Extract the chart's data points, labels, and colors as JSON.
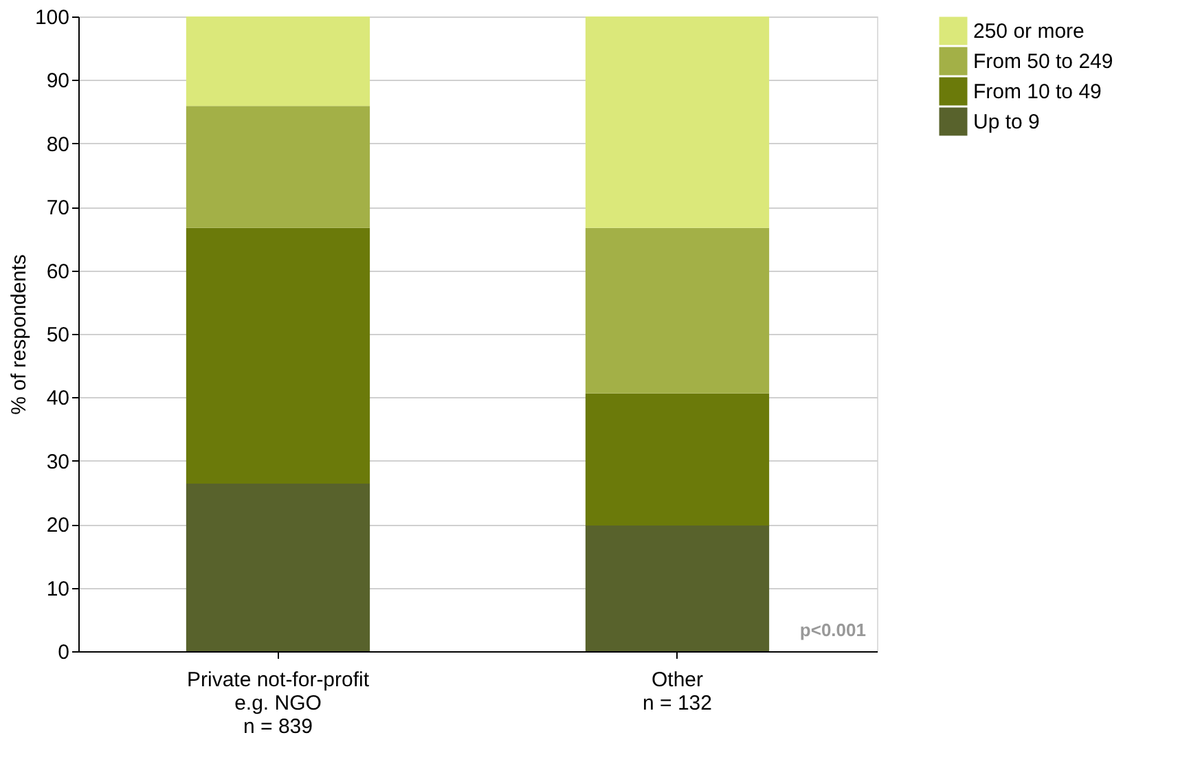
{
  "chart_data": {
    "type": "bar",
    "stacked": true,
    "categories": [
      "Private not-for-profit\ne.g. NGO\nn = 839",
      "Other\nn = 132"
    ],
    "series": [
      {
        "name": "Up to 9",
        "color": "#58622c",
        "values": [
          26.4,
          19.8
        ]
      },
      {
        "name": "From 10 to 49",
        "color": "#6b7a0a",
        "values": [
          40.3,
          20.8
        ]
      },
      {
        "name": "From 50 to 249",
        "color": "#a3b047",
        "values": [
          19.2,
          26.1
        ]
      },
      {
        "name": "250 or more",
        "color": "#dbe87a",
        "values": [
          14.1,
          33.3
        ]
      }
    ],
    "ylabel": "% of respondents",
    "ylim": [
      0,
      100
    ],
    "yticks": [
      0,
      10,
      20,
      30,
      40,
      50,
      60,
      70,
      80,
      90,
      100
    ],
    "grid": "y",
    "legend": "right",
    "annotations": [
      "p<0.001"
    ]
  }
}
